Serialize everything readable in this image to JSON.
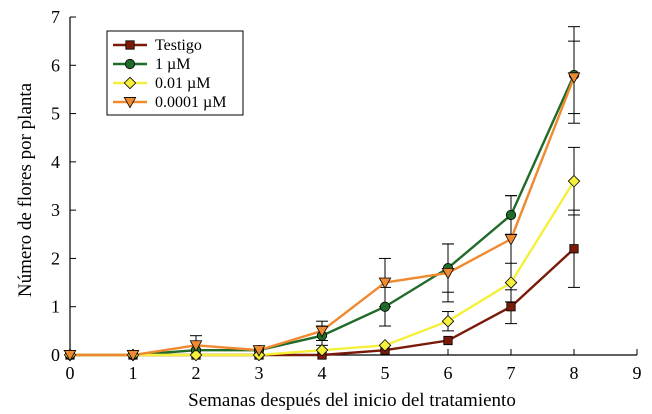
{
  "chart_data": {
    "type": "line",
    "title": "",
    "xlabel": "Semanas después del inicio del tratamiento",
    "ylabel": "Número de flores por planta",
    "xlim": [
      0,
      9
    ],
    "ylim": [
      0,
      7
    ],
    "xticks": [
      "0",
      "1",
      "2",
      "3",
      "4",
      "5",
      "6",
      "7",
      "8",
      "9"
    ],
    "yticks": [
      "0",
      "1",
      "2",
      "3",
      "4",
      "5",
      "6",
      "7"
    ],
    "grid": false,
    "legend": "top-left",
    "x": [
      0,
      1,
      2,
      3,
      4,
      5,
      6,
      7,
      8
    ],
    "series": [
      {
        "name": "Testigo",
        "color": "#7a1a08",
        "marker": "square",
        "values": [
          0,
          0,
          0,
          0,
          0,
          0.1,
          0.3,
          1.0,
          2.2
        ],
        "error": [
          0,
          0,
          0,
          0,
          0,
          0,
          0,
          0.35,
          0.8
        ]
      },
      {
        "name": "1 µM",
        "color": "#1f6b2a",
        "marker": "circle",
        "values": [
          0,
          0,
          0.1,
          0.1,
          0.4,
          1.0,
          1.8,
          2.9,
          5.8
        ],
        "error": [
          0,
          0,
          0,
          0,
          0.2,
          0.4,
          0.5,
          0.4,
          1.0
        ]
      },
      {
        "name": "0.01 µM",
        "color": "#f5f03a",
        "marker": "diamond",
        "values": [
          0,
          0,
          0,
          0,
          0.1,
          0.2,
          0.7,
          1.5,
          3.6
        ],
        "error": [
          0,
          0,
          0,
          0,
          0,
          0,
          0.2,
          0.4,
          0.7
        ]
      },
      {
        "name": "0.0001 µM",
        "color": "#f08a30",
        "marker": "triangle-down",
        "values": [
          0,
          0,
          0.2,
          0.1,
          0.5,
          1.5,
          1.7,
          2.4,
          5.75
        ],
        "error": [
          0,
          0,
          0.2,
          0,
          0.2,
          0.5,
          0.6,
          0.9,
          0.75
        ]
      }
    ]
  }
}
